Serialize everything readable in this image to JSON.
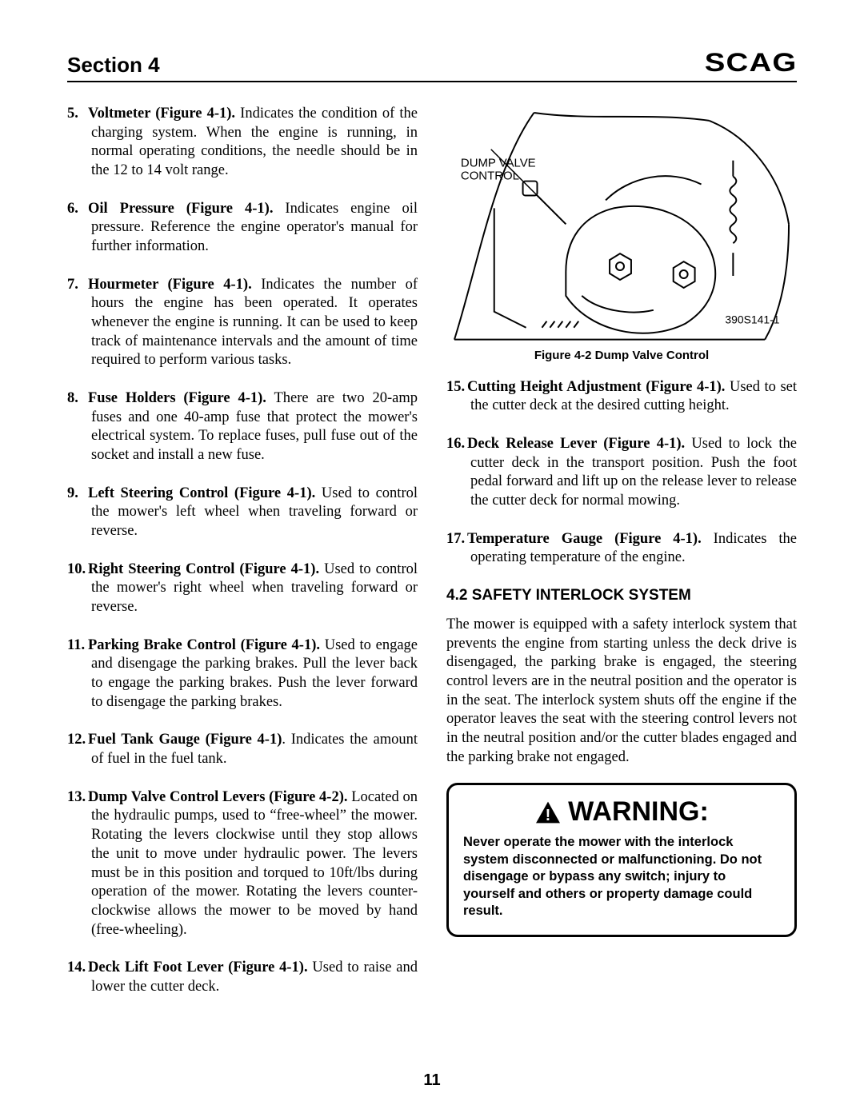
{
  "header": {
    "section_label": "Section 4",
    "logo_text": "SCAG"
  },
  "left_items": [
    {
      "num": "5.",
      "lead": "Voltmeter (Figure 4-1).",
      "text": "  Indicates the condition of the charging system.  When the engine is running, in normal operating conditions, the needle should be in the 12 to 14 volt range."
    },
    {
      "num": "6.",
      "lead": "Oil Pressure (Figure 4-1).",
      "text": "  Indicates engine oil pressure.  Reference the engine operator's manual for further information."
    },
    {
      "num": "7.",
      "lead": "Hourmeter (Figure 4-1).",
      "text": "  Indicates the number of hours the engine has been operated.  It operates whenever the engine is running.  It can be used to keep track of maintenance intervals and the amount of time required to perform various tasks."
    },
    {
      "num": "8.",
      "lead": "Fuse Holders (Figure 4-1).",
      "text": "  There are two 20-amp fuses and one 40-amp fuse that protect the mower's electrical system.  To replace fuses, pull fuse out of the socket and install a new fuse."
    },
    {
      "num": "9.",
      "lead": "Left Steering Control (Figure 4-1).",
      "text": "  Used to control the mower's left wheel when traveling forward or reverse."
    },
    {
      "num": "10.",
      "lead": "Right Steering Control (Figure 4-1).",
      "text": "  Used to control the mower's right wheel when traveling forward or reverse."
    },
    {
      "num": "11.",
      "lead": "Parking Brake Control (Figure 4-1).",
      "text": "  Used to engage and disengage the parking brakes.  Pull the lever back to engage the parking brakes.  Push the lever forward to disengage the parking brakes."
    },
    {
      "num": "12.",
      "lead": "Fuel Tank Gauge (Figure 4-1)",
      "text": ".  Indicates the amount of fuel in the fuel tank."
    },
    {
      "num": "13.",
      "lead": "Dump Valve Control Levers (Figure 4-2).",
      "text": "  Located on the hydraulic pumps, used to “free-wheel” the mower.  Rotating the levers clockwise until they stop allows the unit to move under hydraulic power.  The levers must be in this position and torqued to 10ft/lbs during operation of the mower.  Rotating the levers counter-clockwise allows the mower to be moved by hand (free-wheeling)."
    },
    {
      "num": "14.",
      "lead": "Deck Lift Foot Lever (Figure 4-1).",
      "text": "  Used to raise and lower the cutter deck."
    }
  ],
  "figure": {
    "label_line1": "DUMP VALVE",
    "label_line2": "CONTROL",
    "part_number": "390S141-1",
    "caption": "Figure 4-2 Dump Valve Control"
  },
  "right_items": [
    {
      "num": "15.",
      "lead": "Cutting Height Adjustment (Figure 4-1).",
      "text": "  Used to set the cutter deck at the desired cutting height."
    },
    {
      "num": "16.",
      "lead": "Deck Release Lever (Figure 4-1).",
      "text": "  Used to lock the cutter deck in the transport position.  Push the foot pedal forward and lift up on the release lever to release the cutter deck for normal mowing."
    },
    {
      "num": "17.",
      "lead": "Temperature Gauge (Figure 4-1).",
      "text": "  Indicates the operating temperature of the engine."
    }
  ],
  "safety": {
    "heading": "4.2 SAFETY INTERLOCK SYSTEM",
    "paragraph": "The mower is equipped with a safety interlock system that prevents the engine from starting unless the deck drive is disengaged, the parking brake is engaged, the steering control levers are in the neutral position and the operator is in the seat.  The interlock system shuts off the engine if the operator leaves the seat with the steering control levers not in the neutral position and/or the cutter blades engaged and the parking brake not engaged."
  },
  "warning": {
    "title": "WARNING:",
    "body": "Never operate the mower with the interlock system disconnected or malfunctioning.  Do not disengage or bypass any switch; injury to yourself and others or property damage could result."
  },
  "page_number": "11",
  "colors": {
    "text": "#000000",
    "background": "#ffffff",
    "rule": "#000000"
  },
  "fonts": {
    "body_family": "Times New Roman",
    "body_size_pt": 14,
    "heading_family": "Arial",
    "section_title_size_pt": 20,
    "subheading_size_pt": 14,
    "caption_size_pt": 11,
    "warning_title_size_pt": 26,
    "warning_body_size_pt": 12
  }
}
